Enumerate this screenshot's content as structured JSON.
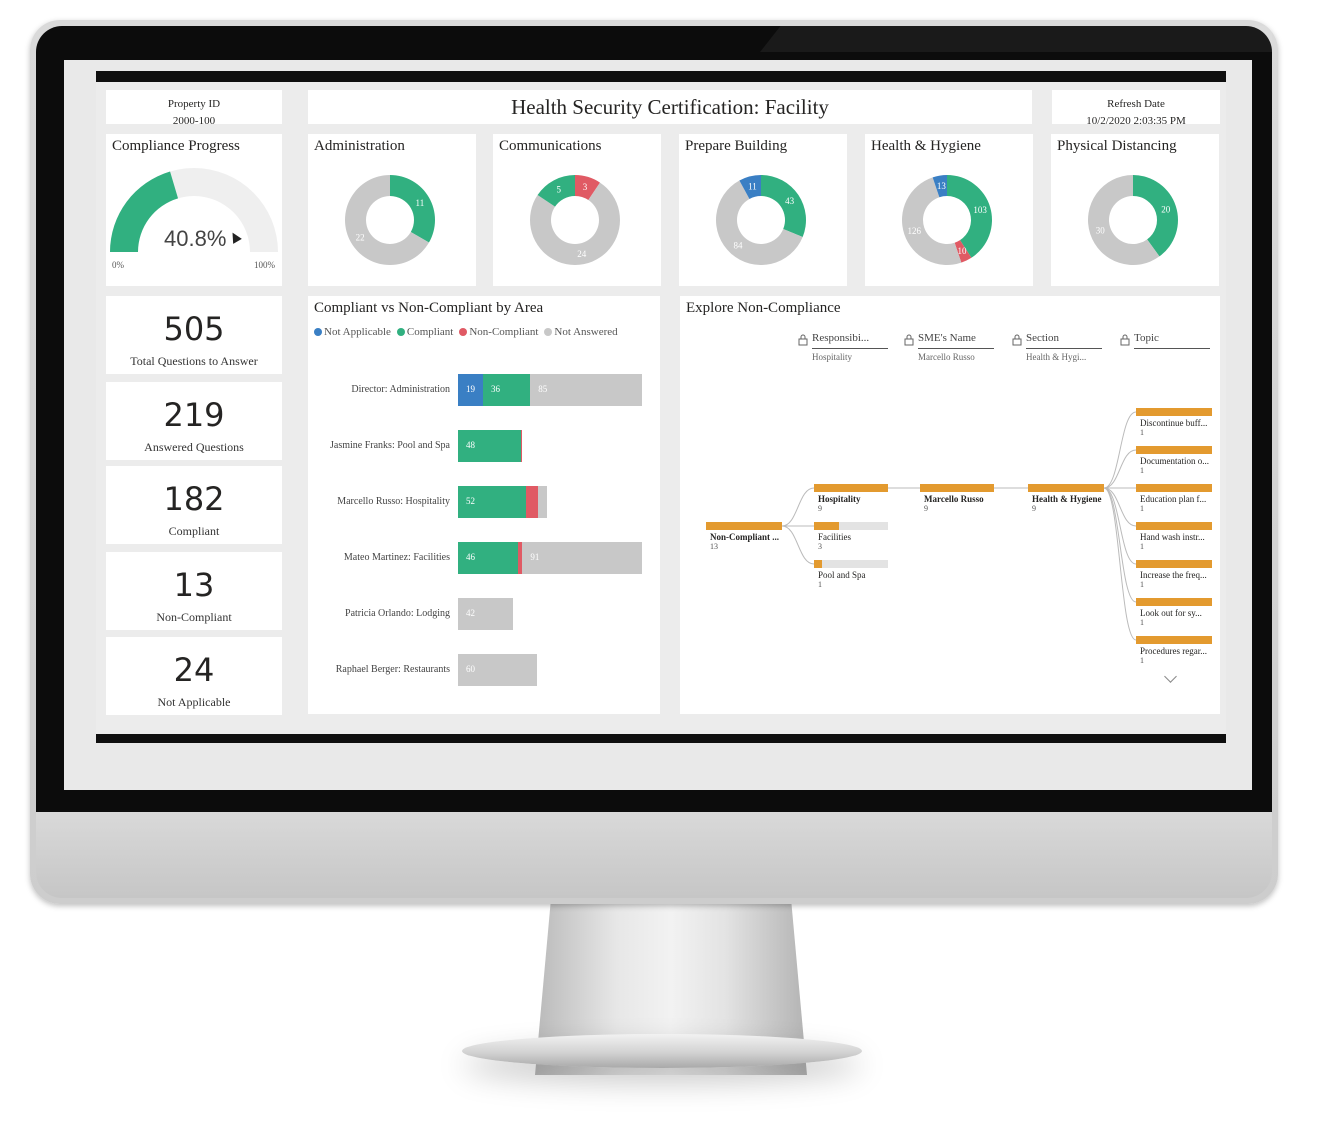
{
  "header": {
    "property_id_label": "Property ID",
    "property_id_value": "2000-100",
    "title": "Health Security Certification: Facility",
    "refresh_label": "Refresh Date",
    "refresh_value": "10/2/2020 2:03:35 PM"
  },
  "gauge": {
    "title": "Compliance Progress",
    "value_label": "40.8%",
    "value": 40.8,
    "min_label": "0%",
    "max_label": "100%"
  },
  "kpis": [
    {
      "value": "505",
      "label": "Total Questions to Answer"
    },
    {
      "value": "219",
      "label": "Answered Questions"
    },
    {
      "value": "182",
      "label": "Compliant"
    },
    {
      "value": "13",
      "label": "Non-Compliant"
    },
    {
      "value": "24",
      "label": "Not Applicable"
    }
  ],
  "colors": {
    "not_applicable": "#3a7fc4",
    "compliant": "#31b080",
    "non_compliant": "#e05a64",
    "not_answered": "#c8c8c8",
    "decomp": "#e39a2f"
  },
  "donuts": [
    {
      "title": "Administration",
      "segments": [
        {
          "key": "compliant",
          "value": 11
        },
        {
          "key": "not_answered",
          "value": 22
        }
      ]
    },
    {
      "title": "Communications",
      "segments": [
        {
          "key": "non_compliant",
          "value": 3
        },
        {
          "key": "not_answered",
          "value": 24
        },
        {
          "key": "compliant",
          "value": 5
        }
      ]
    },
    {
      "title": "Prepare Building",
      "segments": [
        {
          "key": "compliant",
          "value": 43
        },
        {
          "key": "not_answered",
          "value": 84
        },
        {
          "key": "not_applicable",
          "value": 11
        }
      ]
    },
    {
      "title": "Health & Hygiene",
      "segments": [
        {
          "key": "compliant",
          "value": 103
        },
        {
          "key": "non_compliant",
          "value": 10
        },
        {
          "key": "not_answered",
          "value": 126
        },
        {
          "key": "not_applicable",
          "value": 13
        }
      ]
    },
    {
      "title": "Physical Distancing",
      "segments": [
        {
          "key": "compliant",
          "value": 20
        },
        {
          "key": "not_answered",
          "value": 30
        }
      ]
    }
  ],
  "bar_chart": {
    "title": "Compliant vs Non-Compliant by Area",
    "legend": [
      "Not Applicable",
      "Compliant",
      "Non-Compliant",
      "Not Answered"
    ],
    "legend_keys": [
      "not_applicable",
      "compliant",
      "non_compliant",
      "not_answered"
    ]
  },
  "chart_data": {
    "type": "bar",
    "orientation": "horizontal",
    "stacked": true,
    "categories": [
      "Director: Administration",
      "Jasmine Franks: Pool and Spa",
      "Marcello Russo: Hospitality",
      "Mateo Martinez: Facilities",
      "Patricia Orlando: Lodging",
      "Raphael Berger: Restaurants"
    ],
    "series": [
      {
        "name": "Not Applicable",
        "values": [
          19,
          0,
          0,
          0,
          0,
          0
        ]
      },
      {
        "name": "Compliant",
        "values": [
          36,
          48,
          52,
          46,
          0,
          0
        ]
      },
      {
        "name": "Non-Compliant",
        "values": [
          0,
          1,
          9,
          3,
          0,
          0
        ]
      },
      {
        "name": "Not Answered",
        "values": [
          85,
          0,
          7,
          91,
          42,
          60
        ]
      }
    ],
    "bar_labels": [
      [
        "19",
        "36",
        "",
        "85"
      ],
      [
        "",
        "48",
        "",
        ""
      ],
      [
        "",
        "52",
        "",
        ""
      ],
      [
        "",
        "46",
        "",
        "91"
      ],
      [
        "",
        "",
        "",
        "42"
      ],
      [
        "",
        "",
        "",
        "60"
      ]
    ],
    "xlim": [
      0,
      140
    ]
  },
  "decomposition": {
    "title": "Explore Non-Compliance",
    "levels": [
      {
        "name": "Responsibi...",
        "selected": "Hospitality"
      },
      {
        "name": "SME's Name",
        "selected": "Marcello Russo"
      },
      {
        "name": "Section",
        "selected": "Health & Hygi..."
      },
      {
        "name": "Topic",
        "selected": ""
      }
    ],
    "root": {
      "label": "Non-Compliant ...",
      "value": "13"
    },
    "level1": [
      {
        "label": "Hospitality",
        "value": "9",
        "fraction": 1.0
      },
      {
        "label": "Facilities",
        "value": "3",
        "fraction": 0.333
      },
      {
        "label": "Pool and Spa",
        "value": "1",
        "fraction": 0.111
      }
    ],
    "level2": {
      "label": "Marcello Russo",
      "value": "9"
    },
    "level3": {
      "label": "Health & Hygiene",
      "value": "9"
    },
    "topics": [
      {
        "label": "Discontinue buff...",
        "value": "1"
      },
      {
        "label": "Documentation o...",
        "value": "1"
      },
      {
        "label": "Education plan f...",
        "value": "1"
      },
      {
        "label": "Hand wash instr...",
        "value": "1"
      },
      {
        "label": "Increase the freq...",
        "value": "1"
      },
      {
        "label": "Look out for sy...",
        "value": "1"
      },
      {
        "label": "Procedures regar...",
        "value": "1"
      }
    ]
  }
}
